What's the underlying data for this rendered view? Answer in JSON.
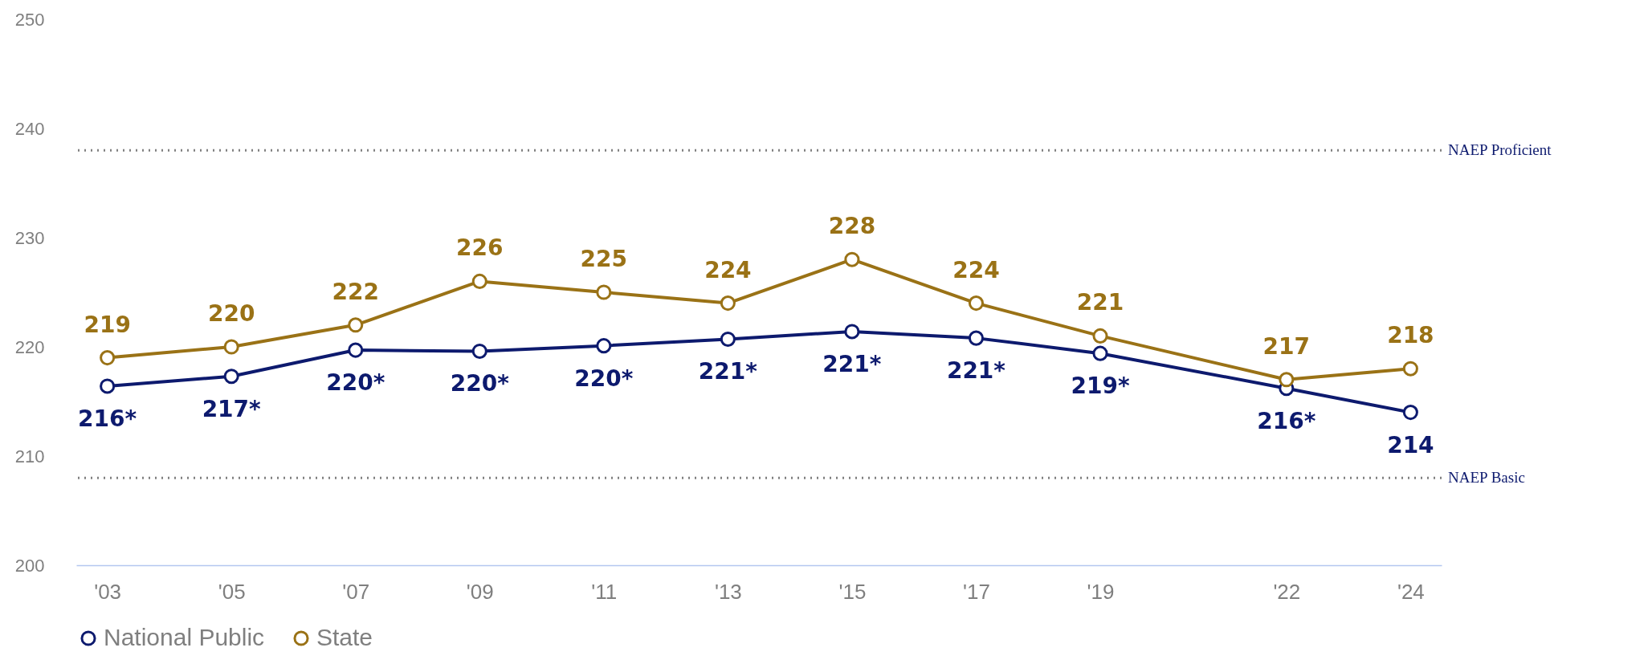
{
  "chart_data": {
    "type": "line",
    "x": [
      2003,
      2005,
      2007,
      2009,
      2011,
      2013,
      2015,
      2017,
      2019,
      2022,
      2024
    ],
    "xlim": [
      2002.5,
      2024.5
    ],
    "xticks": [
      {
        "value": 2003,
        "label": "'03"
      },
      {
        "value": 2005,
        "label": "'05"
      },
      {
        "value": 2007,
        "label": "'07"
      },
      {
        "value": 2009,
        "label": "'09"
      },
      {
        "value": 2011,
        "label": "'11"
      },
      {
        "value": 2013,
        "label": "'13"
      },
      {
        "value": 2015,
        "label": "'15"
      },
      {
        "value": 2017,
        "label": "'17"
      },
      {
        "value": 2019,
        "label": "'19"
      },
      {
        "value": 2022,
        "label": "'22"
      },
      {
        "value": 2024,
        "label": "'24"
      }
    ],
    "ylim": [
      200,
      250
    ],
    "yticks": [
      200,
      210,
      220,
      230,
      240,
      250
    ],
    "series": [
      {
        "name": "National Public",
        "color": "#0d1a6e",
        "values": [
          216.4,
          217.3,
          219.7,
          219.6,
          220.1,
          220.7,
          221.4,
          220.8,
          219.4,
          216.2,
          214.0
        ],
        "value_labels": [
          "216*",
          "217*",
          "220*",
          "220*",
          "220*",
          "221*",
          "221*",
          "221*",
          "219*",
          "216*",
          "214"
        ]
      },
      {
        "name": "State",
        "color": "#9a7216",
        "values": [
          219,
          220,
          222,
          226,
          225,
          224,
          228,
          224,
          221,
          217,
          218
        ],
        "value_labels": [
          "219",
          "220",
          "222",
          "226",
          "225",
          "224",
          "228",
          "224",
          "221",
          "217",
          "218"
        ]
      }
    ],
    "ref_lines": [
      {
        "axis": "y",
        "value": 238,
        "label": "NAEP Proficient",
        "color": "#808080",
        "line_style": "dotted"
      },
      {
        "axis": "y",
        "value": 208,
        "label": "NAEP Basic",
        "color": "#808080",
        "line_style": "dotted"
      }
    ],
    "grid": false,
    "legend": "bottom",
    "marker": "circle",
    "line_style": "solid"
  }
}
